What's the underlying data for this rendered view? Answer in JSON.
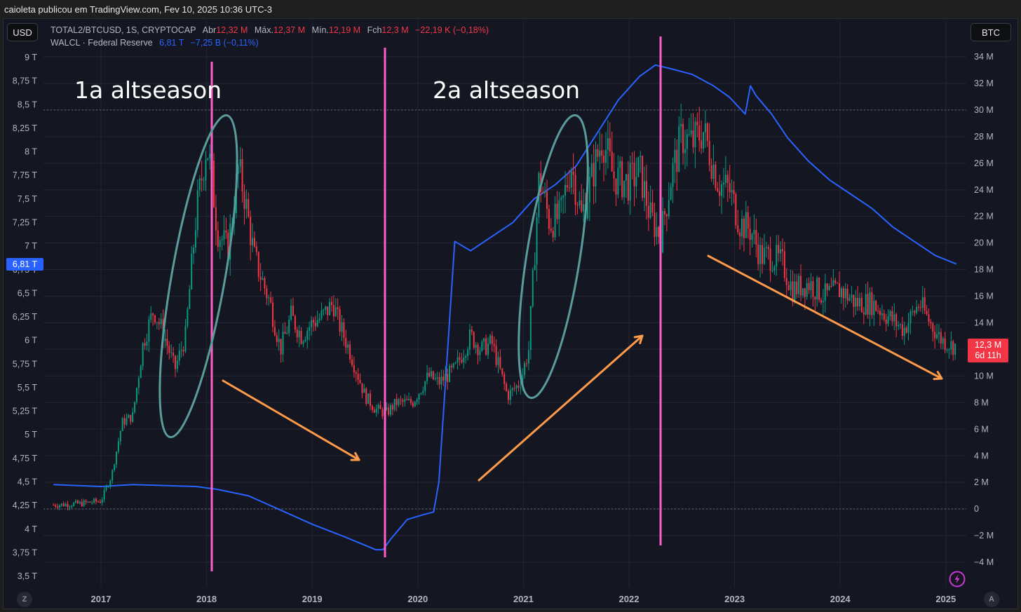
{
  "attribution": "caioleta publicou em TradingView.com, Fev 10, 2025 10:36 UTC-3",
  "left_currency_button": "USD",
  "right_currency_button": "BTC",
  "legend": {
    "main_symbol": "TOTAL2/BTCUSD, 1S, CRYPTOCAP",
    "open_label": "Abr",
    "open_value": "12,32 M",
    "high_label": "Máx.",
    "high_value": "12,37 M",
    "low_label": "Mín.",
    "low_value": "12,19 M",
    "close_label": "Fch",
    "close_value": "12,3 M",
    "change": "−22,19 K (−0,18%)",
    "overlay_symbol": "WALCL · Federal Reserve",
    "overlay_value": "6,81 T",
    "overlay_change": "−7,25 B (−0,11%)"
  },
  "price_tags": {
    "left_value": "6,81 T",
    "right_value": "12,3 M",
    "right_countdown": "6d 11h"
  },
  "buttons": {
    "left_scale": "Z",
    "right_scale": "A"
  },
  "colors": {
    "background": "#141722",
    "grid": "#232632",
    "up_candle": "#089981",
    "down_candle": "#f23645",
    "walcl_line": "#2962ff",
    "vertical_markers": "#ff5cc8",
    "ellipse": "#5a9c9c",
    "arrow": "#ff9a4a"
  },
  "annotations": {
    "first_altseason": "1a altseason",
    "second_altseason": "2a altseason"
  },
  "chart_data": {
    "type": "line",
    "title": "TOTAL2/BTCUSD, 1S, CRYPTOCAP vs WALCL · Federal Reserve",
    "xlabel": "",
    "x_ticks": [
      "2017",
      "2018",
      "2019",
      "2020",
      "2021",
      "2022",
      "2023",
      "2024",
      "2025"
    ],
    "left_axis": {
      "label": "USD",
      "ticks": [
        "9 T",
        "8,75 T",
        "8,5 T",
        "8,25 T",
        "8 T",
        "7,75 T",
        "7,5 T",
        "7,25 T",
        "7 T",
        "6,75 T",
        "6,5 T",
        "6,25 T",
        "6 T",
        "5,75 T",
        "5,5 T",
        "5,25 T",
        "5 T",
        "4,75 T",
        "4,5 T",
        "4,25 T",
        "4 T",
        "3,75 T",
        "3,5 T"
      ],
      "range": [
        3.5,
        9.0
      ]
    },
    "right_axis": {
      "label": "BTC",
      "ticks": [
        "34 M",
        "32 M",
        "30 M",
        "28 M",
        "26 M",
        "24 M",
        "22 M",
        "20 M",
        "18 M",
        "16 M",
        "14 M",
        "12 M",
        "10 M",
        "8 M",
        "6 M",
        "4 M",
        "2 M",
        "0",
        "−2 M",
        "−4 M"
      ],
      "range": [
        -4.5,
        34.5
      ]
    },
    "series": [
      {
        "name": "TOTAL2/BTCUSD (candles, BTC axis, millions)",
        "x": [
          2016.55,
          2016.8,
          2017.0,
          2017.1,
          2017.2,
          2017.3,
          2017.4,
          2017.5,
          2017.6,
          2017.7,
          2017.8,
          2017.9,
          2018.0,
          2018.05,
          2018.1,
          2018.2,
          2018.3,
          2018.35,
          2018.45,
          2018.6,
          2018.7,
          2018.8,
          2018.9,
          2019.0,
          2019.1,
          2019.2,
          2019.25,
          2019.35,
          2019.5,
          2019.6,
          2019.7,
          2019.8,
          2019.95,
          2020.1,
          2020.2,
          2020.35,
          2020.5,
          2020.6,
          2020.7,
          2020.85,
          2020.97,
          2021.05,
          2021.15,
          2021.25,
          2021.35,
          2021.45,
          2021.55,
          2021.65,
          2021.75,
          2021.85,
          2022.0,
          2022.1,
          2022.2,
          2022.3,
          2022.4,
          2022.5,
          2022.6,
          2022.7,
          2022.85,
          2022.95,
          2023.05,
          2023.15,
          2023.25,
          2023.35,
          2023.45,
          2023.55,
          2023.7,
          2023.85,
          2024.0,
          2024.15,
          2024.3,
          2024.45,
          2024.6,
          2024.75,
          2024.85,
          2024.95,
          2025.05,
          2025.1
        ],
        "values": [
          0.3,
          0.4,
          0.6,
          2.5,
          6.5,
          7.0,
          12.5,
          15.0,
          13.0,
          10.5,
          13.0,
          22.0,
          27.5,
          25.0,
          21.0,
          19.5,
          25.5,
          24.0,
          19.0,
          15.5,
          12.0,
          14.5,
          13.0,
          14.0,
          14.5,
          15.5,
          14.0,
          12.0,
          8.5,
          7.5,
          7.2,
          8.0,
          8.0,
          10.0,
          9.5,
          10.5,
          13.0,
          12.0,
          12.5,
          8.5,
          9.5,
          12.0,
          25.0,
          21.5,
          22.0,
          26.0,
          22.0,
          25.0,
          28.0,
          25.0,
          24.5,
          25.5,
          22.0,
          20.5,
          25.0,
          28.0,
          27.5,
          28.5,
          24.5,
          24.0,
          21.5,
          21.0,
          19.0,
          19.0,
          18.5,
          16.5,
          17.0,
          16.0,
          16.5,
          15.5,
          15.5,
          14.5,
          13.5,
          15.5,
          14.0,
          12.8,
          12.3,
          12.3
        ]
      },
      {
        "name": "WALCL · Federal Reserve (line, USD axis, trillions)",
        "x": [
          2016.55,
          2017.0,
          2017.3,
          2017.6,
          2017.9,
          2018.1,
          2018.4,
          2018.7,
          2019.0,
          2019.3,
          2019.6,
          2019.67,
          2019.75,
          2019.9,
          2020.05,
          2020.15,
          2020.2,
          2020.3,
          2020.35,
          2020.5,
          2020.7,
          2020.9,
          2021.1,
          2021.3,
          2021.5,
          2021.7,
          2021.9,
          2022.1,
          2022.25,
          2022.4,
          2022.6,
          2022.8,
          2022.95,
          2023.1,
          2023.15,
          2023.2,
          2023.35,
          2023.5,
          2023.7,
          2023.9,
          2024.1,
          2024.3,
          2024.5,
          2024.7,
          2024.9,
          2025.1
        ],
        "values": [
          4.47,
          4.45,
          4.47,
          4.46,
          4.45,
          4.42,
          4.35,
          4.2,
          4.05,
          3.92,
          3.78,
          3.78,
          3.9,
          4.1,
          4.15,
          4.18,
          4.5,
          6.2,
          7.05,
          6.95,
          7.1,
          7.25,
          7.5,
          7.65,
          7.85,
          8.2,
          8.55,
          8.8,
          8.92,
          8.88,
          8.82,
          8.7,
          8.58,
          8.4,
          8.7,
          8.6,
          8.4,
          8.15,
          7.9,
          7.7,
          7.55,
          7.4,
          7.2,
          7.05,
          6.9,
          6.81
        ]
      }
    ],
    "annotations": [
      {
        "type": "text",
        "text": "1a altseason",
        "x": 2017.3
      },
      {
        "type": "text",
        "text": "2a altseason",
        "x": 2020.55
      },
      {
        "type": "vertical_line",
        "x": 2018.05
      },
      {
        "type": "vertical_line",
        "x": 2019.68
      },
      {
        "type": "vertical_line",
        "x": 2022.3
      },
      {
        "type": "ellipse",
        "around": "2017.7–2018.15 rally"
      },
      {
        "type": "ellipse",
        "around": "2021.0–2021.5 rally"
      },
      {
        "type": "arrow",
        "direction": "down",
        "from": "2018.15",
        "to": "2019.5"
      },
      {
        "type": "arrow",
        "direction": "up",
        "from": "2020.55",
        "to": "2021.8"
      },
      {
        "type": "arrow",
        "direction": "down",
        "from": "2022.75",
        "to": "2025.0"
      }
    ],
    "grid": true,
    "legend_position": "top-left"
  }
}
